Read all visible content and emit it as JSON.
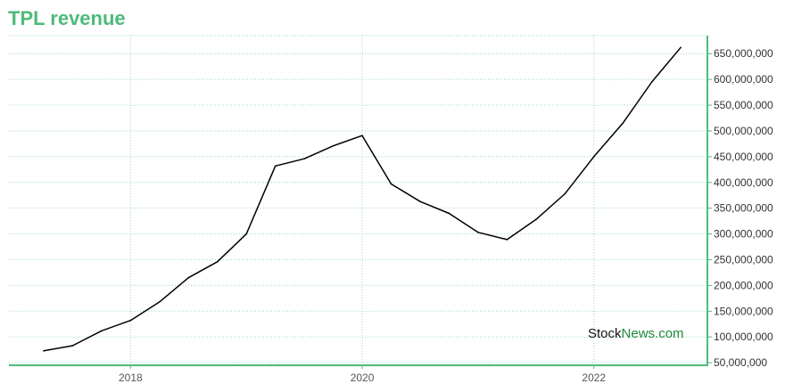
{
  "chart_data": {
    "type": "line",
    "title": "TPL revenue",
    "xlabel": "",
    "ylabel": "",
    "x": [
      2017.25,
      2017.5,
      2017.75,
      2018.0,
      2018.25,
      2018.5,
      2018.75,
      2019.0,
      2019.25,
      2019.5,
      2019.75,
      2020.0,
      2020.25,
      2020.5,
      2020.75,
      2021.0,
      2021.25,
      2021.5,
      2021.75,
      2022.0,
      2022.25,
      2022.5,
      2022.75
    ],
    "series": [
      {
        "values": [
          73000000,
          83000000,
          112000000,
          132000000,
          168000000,
          215000000,
          246000000,
          300000000,
          432000000,
          446000000,
          471000000,
          491000000,
          397000000,
          363000000,
          340000000,
          303000000,
          289000000,
          328000000,
          378000000,
          450000000,
          515000000,
          595000000,
          662000000
        ],
        "color": "#000000"
      }
    ],
    "xlim": [
      2016.95,
      2022.98
    ],
    "ylim": [
      45000000,
      685000000
    ],
    "x_ticks": [
      "2018",
      "2020",
      "2022"
    ],
    "y_ticks": [
      "50,000,000",
      "100,000,000",
      "150,000,000",
      "200,000,000",
      "250,000,000",
      "300,000,000",
      "350,000,000",
      "400,000,000",
      "450,000,000",
      "500,000,000",
      "550,000,000",
      "600,000,000",
      "650,000,000"
    ],
    "grid": true,
    "axis_color": "#4dba7a",
    "grid_color": "#9fd9b8"
  },
  "watermark": {
    "part1": "Stock",
    "part2": "News.com"
  }
}
